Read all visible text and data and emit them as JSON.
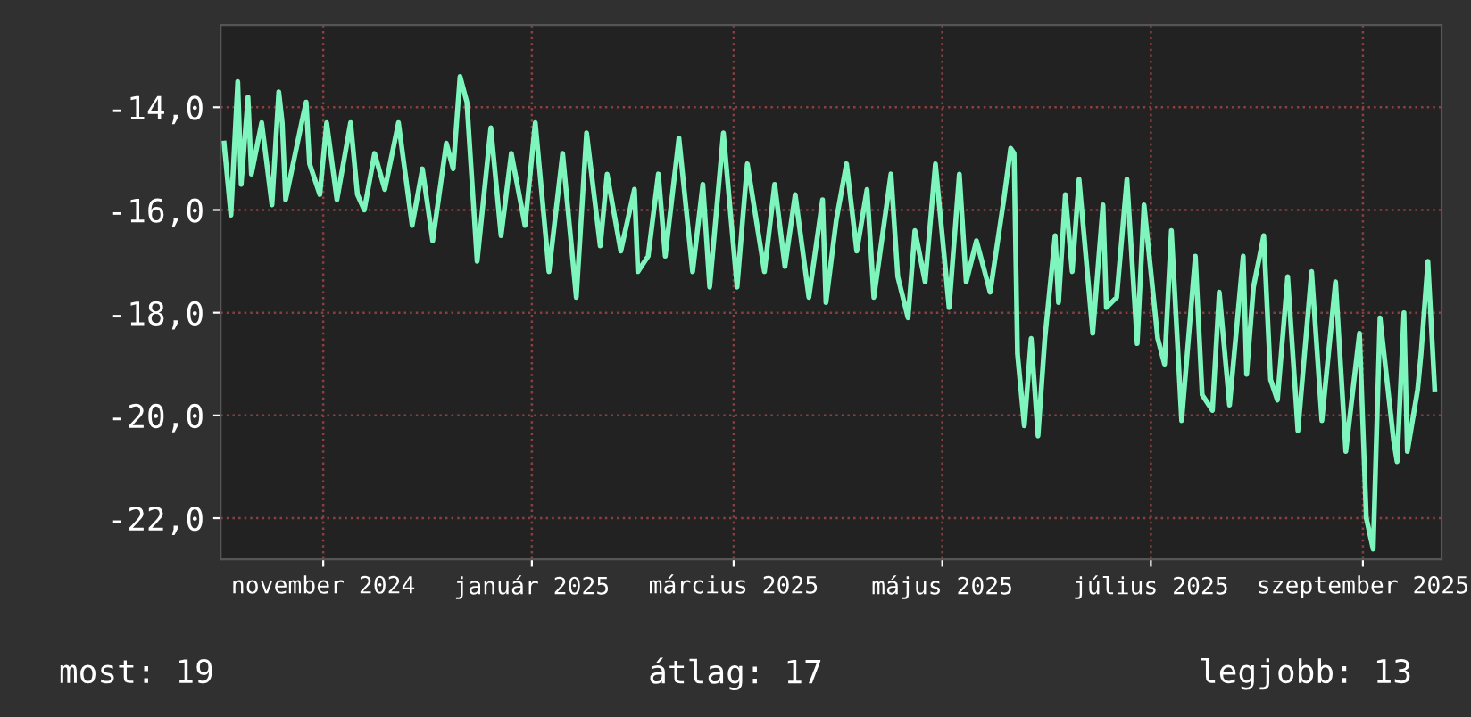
{
  "chart_data": {
    "type": "line",
    "x": [
      "2024-10-17",
      "2024-10-19",
      "2024-10-21",
      "2024-10-22",
      "2024-10-24",
      "2024-10-25",
      "2024-10-28",
      "2024-10-31",
      "2024-11-02",
      "2024-11-03",
      "2024-11-04",
      "2024-11-09",
      "2024-11-10",
      "2024-11-11",
      "2024-11-14",
      "2024-11-16",
      "2024-11-19",
      "2024-11-23",
      "2024-11-25",
      "2024-11-27",
      "2024-11-30",
      "2024-12-03",
      "2024-12-07",
      "2024-12-11",
      "2024-12-14",
      "2024-12-17",
      "2024-12-21",
      "2024-12-23",
      "2024-12-25",
      "2024-12-27",
      "2024-12-30",
      "2025-01-03",
      "2025-01-06",
      "2025-01-09",
      "2025-01-13",
      "2025-01-16",
      "2025-01-20",
      "2025-01-24",
      "2025-01-28",
      "2025-01-31",
      "2025-02-04",
      "2025-02-06",
      "2025-02-10",
      "2025-02-14",
      "2025-02-15",
      "2025-02-18",
      "2025-02-21",
      "2025-02-23",
      "2025-02-27",
      "2025-03-03",
      "2025-03-06",
      "2025-03-08",
      "2025-03-12",
      "2025-03-16",
      "2025-03-19",
      "2025-03-24",
      "2025-03-27",
      "2025-03-30",
      "2025-04-02",
      "2025-04-06",
      "2025-04-10",
      "2025-04-11",
      "2025-04-14",
      "2025-04-17",
      "2025-04-20",
      "2025-04-23",
      "2025-04-25",
      "2025-04-30",
      "2025-05-02",
      "2025-05-05",
      "2025-05-07",
      "2025-05-10",
      "2025-05-13",
      "2025-05-17",
      "2025-05-20",
      "2025-05-22",
      "2025-05-25",
      "2025-05-29",
      "2025-06-02",
      "2025-06-04",
      "2025-06-05",
      "2025-06-06",
      "2025-06-08",
      "2025-06-10",
      "2025-06-12",
      "2025-06-14",
      "2025-06-17",
      "2025-06-18",
      "2025-06-20",
      "2025-06-22",
      "2025-06-24",
      "2025-06-28",
      "2025-07-01",
      "2025-07-02",
      "2025-07-05",
      "2025-07-08",
      "2025-07-11",
      "2025-07-13",
      "2025-07-17",
      "2025-07-19",
      "2025-07-21",
      "2025-07-24",
      "2025-07-28",
      "2025-07-30",
      "2025-08-02",
      "2025-08-04",
      "2025-08-07",
      "2025-08-11",
      "2025-08-12",
      "2025-08-14",
      "2025-08-17",
      "2025-08-19",
      "2025-08-21",
      "2025-08-24",
      "2025-08-27",
      "2025-08-31",
      "2025-09-03",
      "2025-09-07",
      "2025-09-10",
      "2025-09-14",
      "2025-09-16",
      "2025-09-18",
      "2025-09-20",
      "2025-09-24",
      "2025-09-25",
      "2025-09-27",
      "2025-09-28",
      "2025-10-01",
      "2025-10-02",
      "2025-10-04",
      "2025-10-06"
    ],
    "series": [
      {
        "color": "#7ff5be",
        "values": [
          -14.7,
          -16.1,
          -13.5,
          -15.5,
          -13.8,
          -15.3,
          -14.3,
          -15.9,
          -13.7,
          -14.3,
          -15.8,
          -14.2,
          -13.9,
          -15.1,
          -15.7,
          -14.3,
          -15.8,
          -14.3,
          -15.7,
          -16.0,
          -14.9,
          -15.6,
          -14.3,
          -16.3,
          -15.2,
          -16.6,
          -14.7,
          -15.2,
          -13.4,
          -13.9,
          -17.0,
          -14.4,
          -16.5,
          -14.9,
          -16.3,
          -14.3,
          -17.2,
          -14.9,
          -17.7,
          -14.5,
          -16.7,
          -15.3,
          -16.8,
          -15.6,
          -17.2,
          -16.9,
          -15.3,
          -16.9,
          -14.6,
          -17.2,
          -15.5,
          -17.5,
          -14.5,
          -17.5,
          -15.1,
          -17.2,
          -15.5,
          -17.1,
          -15.7,
          -17.7,
          -15.8,
          -17.8,
          -16.2,
          -15.1,
          -16.8,
          -15.6,
          -17.7,
          -15.3,
          -17.3,
          -18.1,
          -16.4,
          -17.4,
          -15.1,
          -17.9,
          -15.3,
          -17.4,
          -16.6,
          -17.6,
          -15.8,
          -14.8,
          -14.9,
          -18.8,
          -20.2,
          -18.5,
          -20.4,
          -18.5,
          -16.5,
          -17.8,
          -15.7,
          -17.2,
          -15.4,
          -18.4,
          -15.9,
          -17.9,
          -17.7,
          -15.4,
          -18.6,
          -15.9,
          -18.5,
          -19.0,
          -16.4,
          -20.1,
          -16.9,
          -19.6,
          -19.9,
          -17.6,
          -19.8,
          -16.9,
          -19.2,
          -17.5,
          -16.5,
          -19.3,
          -19.7,
          -17.3,
          -20.3,
          -17.2,
          -20.1,
          -17.4,
          -20.7,
          -18.4,
          -22.0,
          -22.6,
          -18.1,
          -20.5,
          -20.9,
          -18.0,
          -20.7,
          -19.5,
          -18.8,
          -17.0,
          -19.5
        ]
      }
    ],
    "xlim": [
      "2024-10-16",
      "2025-10-08"
    ],
    "xticks": [
      {
        "value": "2024-11-15",
        "label": "november 2024"
      },
      {
        "value": "2025-01-15",
        "label": "január 2025"
      },
      {
        "value": "2025-03-15",
        "label": "március 2025"
      },
      {
        "value": "2025-05-15",
        "label": "május 2025"
      },
      {
        "value": "2025-07-15",
        "label": "július 2025"
      },
      {
        "value": "2025-09-15",
        "label": "szeptember 2025"
      }
    ],
    "ylim": [
      -22.8,
      -12.4
    ],
    "yticks": [
      {
        "value": -22,
        "label": "-22,0"
      },
      {
        "value": -20,
        "label": "-20,0"
      },
      {
        "value": -18,
        "label": "-18,0"
      },
      {
        "value": -16,
        "label": "-16,0"
      },
      {
        "value": -14,
        "label": "-14,0"
      }
    ],
    "grid": true,
    "annotations": [
      "most: 19",
      "átlag: 17",
      "legjobb: 13"
    ]
  }
}
